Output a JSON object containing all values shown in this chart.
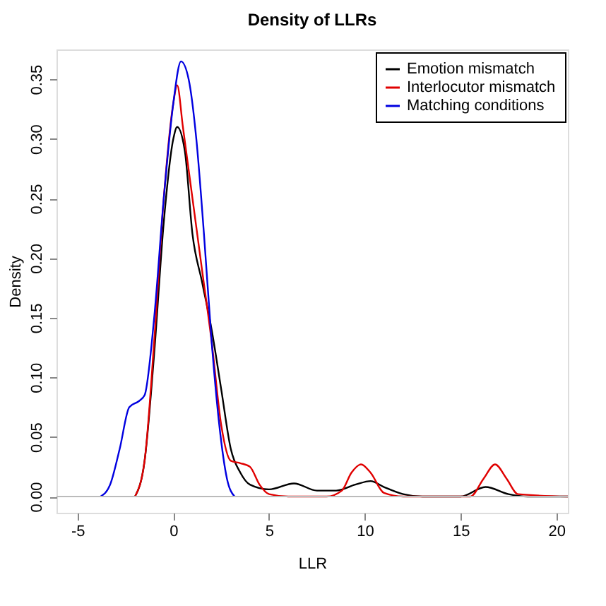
{
  "chart_data": {
    "type": "line",
    "title": "Density of LLRs",
    "xlabel": "LLR",
    "ylabel": "Density",
    "xlim": [
      -6.1,
      20.6
    ],
    "xticks": [
      -5,
      0,
      5,
      10,
      15,
      20
    ],
    "ylim": [
      -0.0136,
      0.375
    ],
    "yticks": [
      {
        "value": 0,
        "label": "0.00"
      },
      0.05,
      {
        "value": 0.1,
        "label": "0.10"
      },
      0.15,
      {
        "value": 0.2,
        "label": "0.20"
      },
      0.25,
      {
        "value": 0.3,
        "label": "0.30"
      },
      0.35
    ],
    "grid": false,
    "legend": "top right",
    "line_style": "solid",
    "marker": "none",
    "ref_lines": [
      {
        "axis": "y",
        "value": 0,
        "label": null,
        "color": "#bbbbbb"
      }
    ],
    "series": [
      {
        "name": "Emotion mismatch",
        "color": "#000000",
        "x": [
          -2,
          -1.5,
          -1,
          -0.5,
          0,
          0.2,
          0.6,
          1,
          1.5,
          2,
          2.5,
          3,
          3.5,
          4,
          5,
          6.3,
          7.5,
          8.5,
          9.5,
          10.3,
          11,
          12,
          13,
          15,
          16.3,
          17.5,
          18.5,
          20.6
        ],
        "values": [
          0,
          0.03,
          0.12,
          0.23,
          0.3,
          0.31,
          0.29,
          0.22,
          0.18,
          0.14,
          0.09,
          0.04,
          0.02,
          0.01,
          0.006,
          0.011,
          0.005,
          0.005,
          0.01,
          0.013,
          0.008,
          0.002,
          0,
          0,
          0.008,
          0.002,
          0,
          0
        ]
      },
      {
        "name": "Interlocutor mismatch",
        "color": "#e00000",
        "x": [
          -2,
          -1.5,
          -1,
          -0.5,
          0,
          0.2,
          0.5,
          1,
          1.5,
          2,
          2.5,
          3,
          3.5,
          4,
          4.5,
          5,
          6,
          8,
          8.8,
          9.3,
          9.8,
          10.3,
          11,
          12,
          15.5,
          16.2,
          16.8,
          17.4,
          18,
          20.6
        ],
        "values": [
          0,
          0.03,
          0.13,
          0.25,
          0.33,
          0.345,
          0.31,
          0.25,
          0.19,
          0.13,
          0.06,
          0.03,
          0.028,
          0.025,
          0.01,
          0.002,
          0,
          0,
          0.005,
          0.02,
          0.027,
          0.02,
          0.003,
          0,
          0,
          0.015,
          0.027,
          0.015,
          0.002,
          0
        ]
      },
      {
        "name": "Matching conditions",
        "color": "#0000e0",
        "x": [
          -3.8,
          -3.3,
          -2.8,
          -2.3,
          -1.8,
          -1.5,
          -1,
          -0.5,
          0,
          0.4,
          0.8,
          1.2,
          1.6,
          2,
          2.4,
          2.8,
          3.2
        ],
        "values": [
          0,
          0.01,
          0.04,
          0.075,
          0.08,
          0.085,
          0.15,
          0.25,
          0.33,
          0.365,
          0.35,
          0.3,
          0.22,
          0.13,
          0.06,
          0.015,
          0
        ]
      }
    ]
  }
}
